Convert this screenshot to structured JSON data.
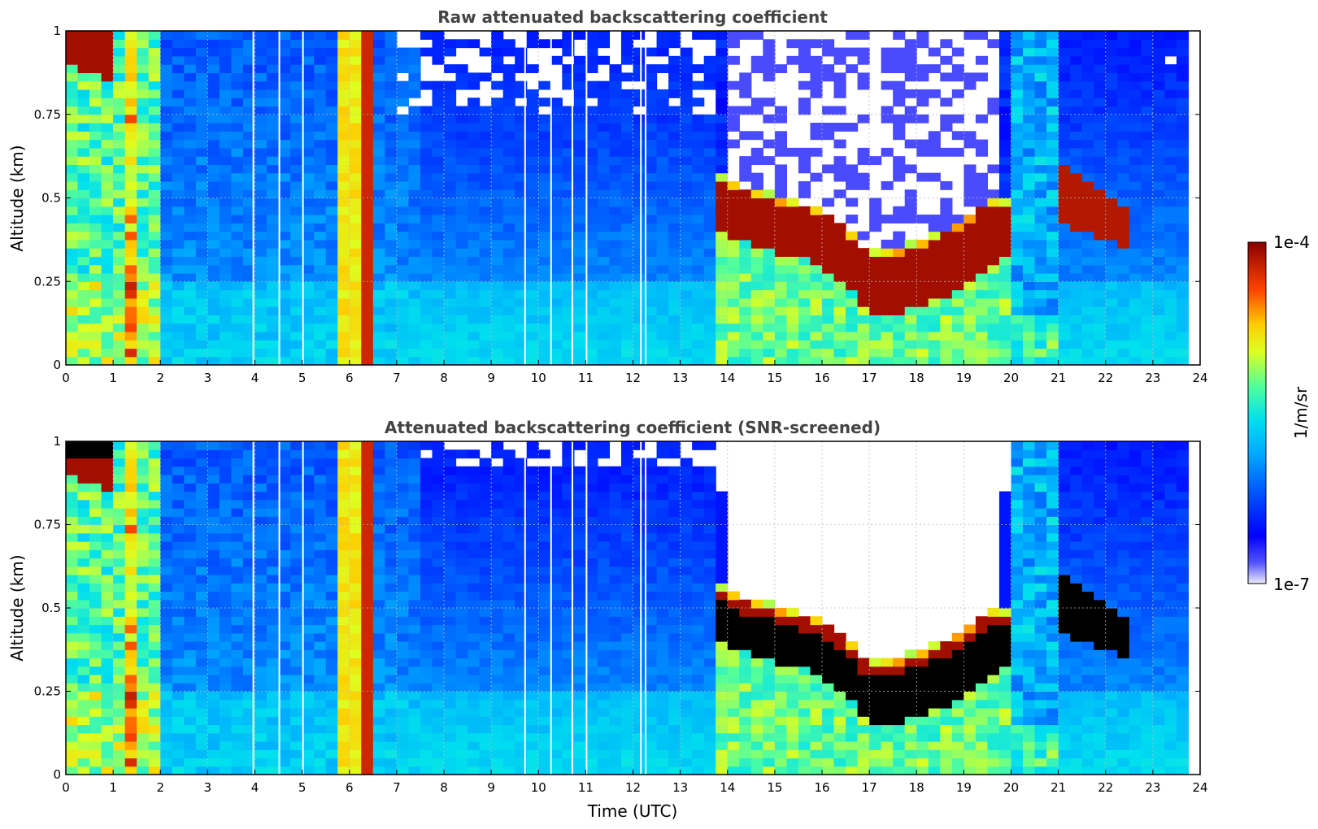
{
  "chart_data": [
    {
      "type": "heatmap",
      "title": "Raw attenuated backscattering coefficient",
      "xlabel": "",
      "ylabel": "Altitude (km)",
      "xlim": [
        0,
        24
      ],
      "ylim": [
        0,
        1
      ],
      "xticks": [
        "0",
        "1",
        "2",
        "3",
        "4",
        "5",
        "6",
        "7",
        "8",
        "9",
        "10",
        "11",
        "12",
        "13",
        "14",
        "15",
        "16",
        "17",
        "18",
        "19",
        "20",
        "21",
        "22",
        "23",
        "24"
      ],
      "yticks": [
        "0",
        "0.25",
        "0.5",
        "0.75",
        "1"
      ],
      "grid": true,
      "layer_top_km": {
        "time_utc": [
          13.8,
          14.5,
          15.0,
          15.5,
          16.0,
          16.5,
          17.0,
          17.5,
          18.0,
          18.5,
          19.0,
          19.5,
          20.0
        ],
        "altitude_km": [
          0.55,
          0.51,
          0.49,
          0.47,
          0.45,
          0.4,
          0.32,
          0.33,
          0.35,
          0.38,
          0.42,
          0.48,
          0.47
        ]
      },
      "layer_base_km": {
        "time_utc": [
          13.8,
          14.5,
          15.0,
          15.5,
          16.0,
          16.5,
          17.0,
          17.5,
          18.0,
          18.5,
          19.0,
          19.5,
          20.0
        ],
        "altitude_km": [
          0.4,
          0.36,
          0.34,
          0.32,
          0.3,
          0.24,
          0.14,
          0.15,
          0.17,
          0.2,
          0.24,
          0.3,
          0.33
        ]
      },
      "strong_column_utc": 6.3,
      "colorbar": {
        "min": "1e-7",
        "max": "1e-4",
        "label": "1/m/sr"
      }
    },
    {
      "type": "heatmap",
      "title": "Attenuated backscattering coefficient (SNR-screened)",
      "xlabel": "Time (UTC)",
      "ylabel": "Altitude (km)",
      "xlim": [
        0,
        24
      ],
      "ylim": [
        0,
        1
      ],
      "xticks": [
        "0",
        "1",
        "2",
        "3",
        "4",
        "5",
        "6",
        "7",
        "8",
        "9",
        "10",
        "11",
        "12",
        "13",
        "14",
        "15",
        "16",
        "17",
        "18",
        "19",
        "20",
        "21",
        "22",
        "23",
        "24"
      ],
      "yticks": [
        "0",
        "0.25",
        "0.5",
        "0.75",
        "1"
      ],
      "grid": true,
      "layer_top_km": {
        "time_utc": [
          13.8,
          14.5,
          15.0,
          15.5,
          16.0,
          16.5,
          17.0,
          17.5,
          18.0,
          18.5,
          19.0,
          19.5,
          20.0
        ],
        "altitude_km": [
          0.55,
          0.51,
          0.49,
          0.47,
          0.45,
          0.4,
          0.32,
          0.33,
          0.35,
          0.38,
          0.42,
          0.48,
          0.47
        ]
      },
      "layer_base_km": {
        "time_utc": [
          13.8,
          14.5,
          15.0,
          15.5,
          16.0,
          16.5,
          17.0,
          17.5,
          18.0,
          18.5,
          19.0,
          19.5,
          20.0
        ],
        "altitude_km": [
          0.4,
          0.36,
          0.34,
          0.32,
          0.3,
          0.24,
          0.14,
          0.15,
          0.17,
          0.2,
          0.24,
          0.3,
          0.33
        ]
      },
      "strong_column_utc": 6.3,
      "colorbar": {
        "min": "1e-7",
        "max": "1e-4",
        "label": "1/m/sr"
      }
    }
  ],
  "colorbar": {
    "min_label": "1e-7",
    "max_label": "1e-4",
    "label": "1/m/sr",
    "colors": [
      "#e8e8f8",
      "#0000ff",
      "#0064ff",
      "#00c8ff",
      "#33ffcc",
      "#aaff55",
      "#ffff00",
      "#ff9900",
      "#ff2200",
      "#8b0000"
    ]
  }
}
